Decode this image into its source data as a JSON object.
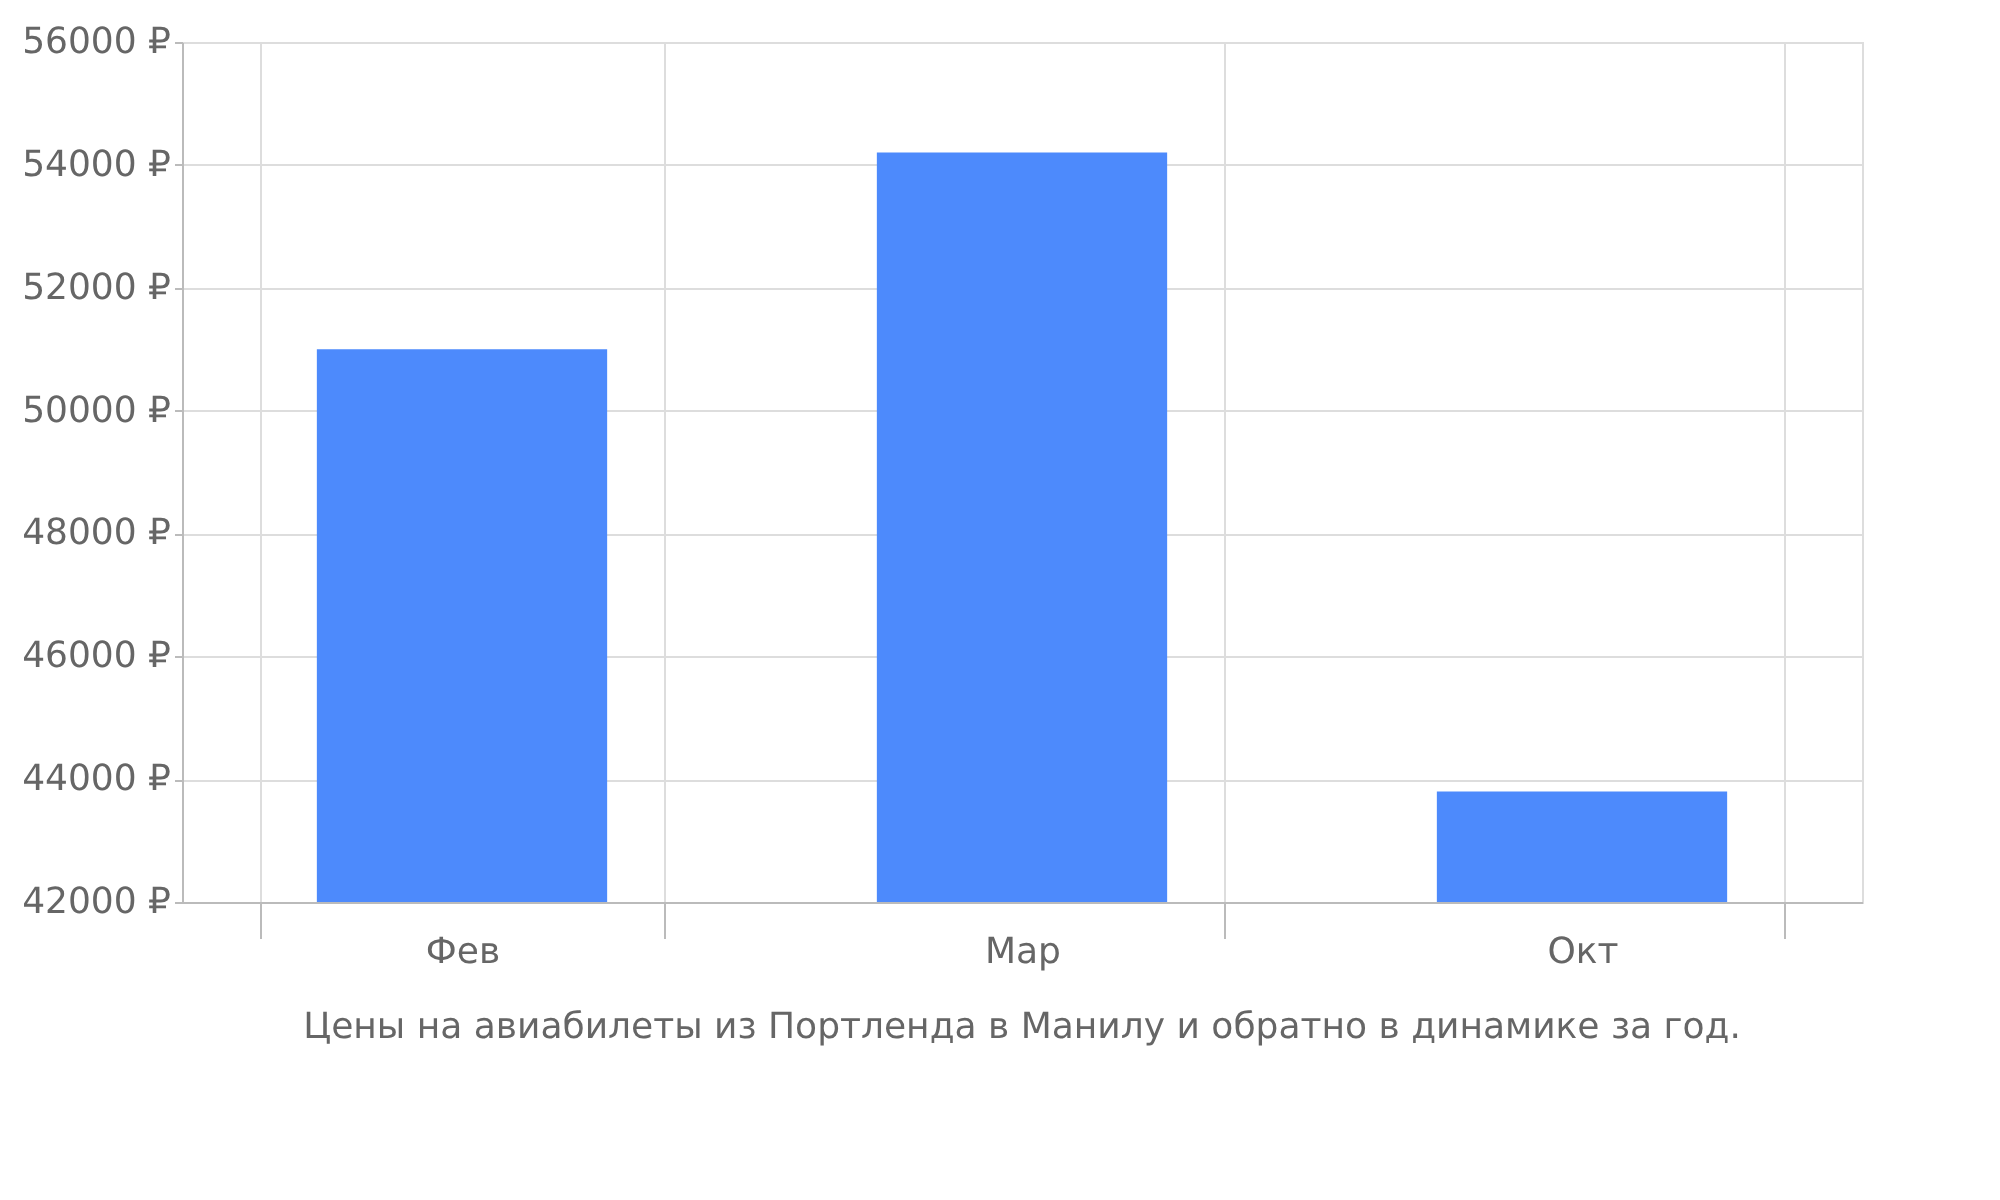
{
  "chart_data": {
    "type": "bar",
    "categories": [
      "Фев",
      "Мар",
      "Окт"
    ],
    "values": [
      51000,
      54200,
      43800
    ],
    "color": "#4d8afc",
    "ylim": [
      42000,
      56000
    ],
    "yticks": [
      {
        "value": 42000,
        "label": "42000 ₽"
      },
      {
        "value": 44000,
        "label": "44000 ₽"
      },
      {
        "value": 46000,
        "label": "46000 ₽"
      },
      {
        "value": 48000,
        "label": "48000 ₽"
      },
      {
        "value": 50000,
        "label": "50000 ₽"
      },
      {
        "value": 52000,
        "label": "52000 ₽"
      },
      {
        "value": 54000,
        "label": "54000 ₽"
      },
      {
        "value": 56000,
        "label": "56000 ₽"
      }
    ],
    "grid": true,
    "annotations": [
      "Цены на авиабилеты из Портленда в Манилу и обратно в динамике за год."
    ]
  }
}
